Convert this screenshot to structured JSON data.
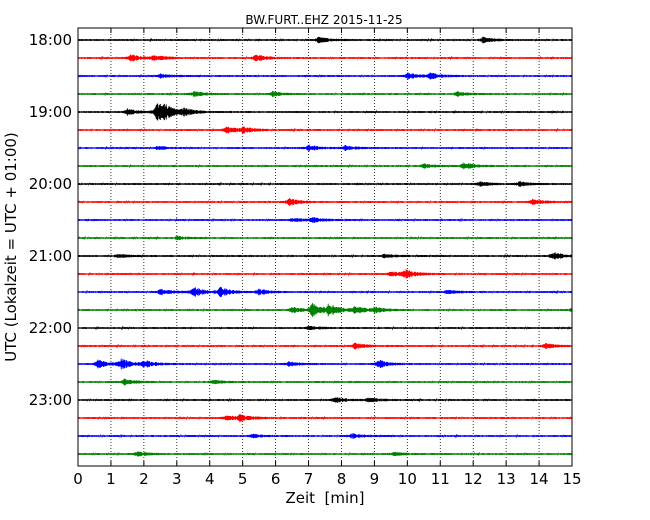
{
  "chart_data": {
    "type": "line",
    "title": "BW.FURT..EHZ 2015-11-25",
    "xlabel": "Zeit  [min]",
    "ylabel": "UTC (Lokalzeit = UTC + 01:00)",
    "xlim": [
      0,
      15
    ],
    "x_ticks": [
      "0",
      "1",
      "2",
      "3",
      "4",
      "5",
      "6",
      "7",
      "8",
      "9",
      "10",
      "11",
      "12",
      "13",
      "14",
      "15"
    ],
    "y_ticks": [
      "18:00",
      "19:00",
      "20:00",
      "21:00",
      "22:00",
      "23:00"
    ],
    "grid": "vertical dotted",
    "color_cycle": [
      "#000000",
      "#ff0000",
      "#0000ff",
      "#008000"
    ],
    "traces": [
      {
        "start": "18:00",
        "bursts": [
          [
            7.3,
            0.5
          ],
          [
            12.3,
            0.45
          ]
        ]
      },
      {
        "start": "18:15",
        "bursts": [
          [
            1.6,
            0.6
          ],
          [
            2.3,
            0.5
          ],
          [
            5.4,
            0.6
          ]
        ]
      },
      {
        "start": "18:30",
        "bursts": [
          [
            10.0,
            0.55
          ],
          [
            10.7,
            0.5
          ],
          [
            2.5,
            0.3
          ]
        ]
      },
      {
        "start": "18:45",
        "bursts": [
          [
            3.5,
            0.45
          ],
          [
            5.9,
            0.4
          ],
          [
            11.5,
            0.35
          ]
        ]
      },
      {
        "start": "19:00",
        "bursts": [
          [
            2.4,
            1.6
          ],
          [
            2.6,
            0.9
          ],
          [
            3.2,
            0.6
          ],
          [
            1.5,
            0.5
          ]
        ]
      },
      {
        "start": "19:15",
        "bursts": [
          [
            4.5,
            0.55
          ],
          [
            5.0,
            0.5
          ]
        ]
      },
      {
        "start": "19:30",
        "bursts": [
          [
            7.0,
            0.5
          ],
          [
            8.1,
            0.4
          ],
          [
            2.4,
            0.3
          ]
        ]
      },
      {
        "start": "19:45",
        "bursts": [
          [
            11.7,
            0.6
          ],
          [
            10.5,
            0.35
          ]
        ]
      },
      {
        "start": "20:00",
        "bursts": [
          [
            12.2,
            0.4
          ],
          [
            13.4,
            0.4
          ]
        ]
      },
      {
        "start": "20:15",
        "bursts": [
          [
            6.4,
            0.6
          ],
          [
            13.8,
            0.45
          ]
        ]
      },
      {
        "start": "20:30",
        "bursts": [
          [
            7.1,
            0.5
          ],
          [
            6.5,
            0.3
          ]
        ]
      },
      {
        "start": "20:45",
        "bursts": [
          [
            3.0,
            0.25
          ]
        ]
      },
      {
        "start": "21:00",
        "bursts": [
          [
            14.4,
            0.7
          ],
          [
            1.2,
            0.3
          ],
          [
            9.3,
            0.3
          ]
        ]
      },
      {
        "start": "21:15",
        "bursts": [
          [
            9.9,
            0.8
          ],
          [
            9.5,
            0.4
          ]
        ]
      },
      {
        "start": "21:30",
        "bursts": [
          [
            3.5,
            0.9
          ],
          [
            4.3,
            0.85
          ],
          [
            2.5,
            0.5
          ],
          [
            5.5,
            0.5
          ],
          [
            11.2,
            0.35
          ]
        ]
      },
      {
        "start": "21:45",
        "bursts": [
          [
            7.1,
            1.2
          ],
          [
            7.6,
            1.1
          ],
          [
            8.4,
            0.7
          ],
          [
            6.5,
            0.5
          ],
          [
            9.0,
            0.45
          ],
          [
            15.0,
            0.35
          ]
        ]
      },
      {
        "start": "22:00",
        "bursts": [
          [
            7.0,
            0.3
          ]
        ]
      },
      {
        "start": "22:15",
        "bursts": [
          [
            8.4,
            0.5
          ],
          [
            14.2,
            0.4
          ]
        ]
      },
      {
        "start": "22:30",
        "bursts": [
          [
            1.3,
            0.9
          ],
          [
            0.6,
            0.7
          ],
          [
            2.0,
            0.6
          ],
          [
            9.1,
            0.75
          ],
          [
            6.4,
            0.35
          ]
        ]
      },
      {
        "start": "22:45",
        "bursts": [
          [
            1.4,
            0.5
          ],
          [
            4.1,
            0.3
          ]
        ]
      },
      {
        "start": "23:00",
        "bursts": [
          [
            7.8,
            0.45
          ],
          [
            8.8,
            0.4
          ]
        ]
      },
      {
        "start": "23:15",
        "bursts": [
          [
            4.9,
            0.55
          ],
          [
            4.5,
            0.4
          ]
        ]
      },
      {
        "start": "23:30",
        "bursts": [
          [
            8.3,
            0.45
          ],
          [
            5.3,
            0.3
          ]
        ]
      },
      {
        "start": "23:45",
        "bursts": [
          [
            1.8,
            0.4
          ],
          [
            9.6,
            0.3
          ]
        ]
      }
    ]
  }
}
